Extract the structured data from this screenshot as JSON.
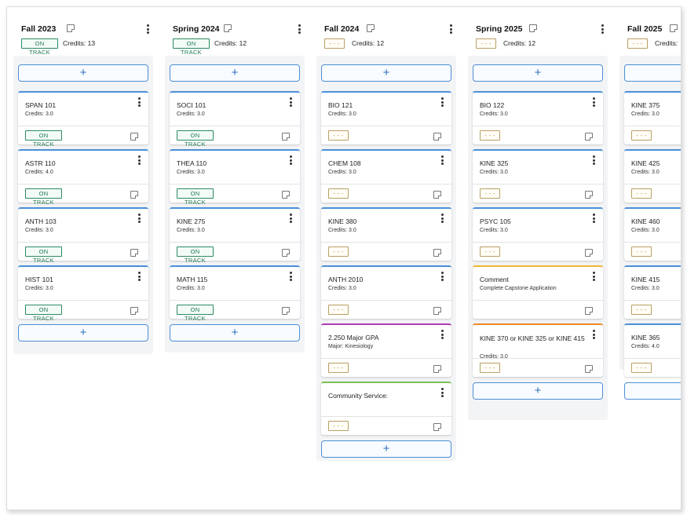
{
  "terms": [
    {
      "title": "Fall 2023",
      "status": "ON TRACK",
      "status_type": "track",
      "credits_label": "Credits:",
      "credits": "13",
      "add_label": "+",
      "cards": [
        {
          "title": "SPAN 101",
          "sub": "Credits: 3.0",
          "status": "ON TRACK",
          "status_type": "track",
          "accent": "#4a90d9"
        },
        {
          "title": "ASTR 110",
          "sub": "Credits: 4.0",
          "status": "ON TRACK",
          "status_type": "track",
          "accent": "#4a90d9"
        },
        {
          "title": "ANTH 103",
          "sub": "Credits: 3.0",
          "status": "ON TRACK",
          "status_type": "track",
          "accent": "#4a90d9"
        },
        {
          "title": "HIST 101",
          "sub": "Credits: 3.0",
          "status": "ON TRACK",
          "status_type": "track",
          "accent": "#4a90d9"
        }
      ]
    },
    {
      "title": "Spring 2024",
      "status": "ON TRACK",
      "status_type": "track",
      "credits_label": "Credits:",
      "credits": "12",
      "add_label": "+",
      "cards": [
        {
          "title": "SOCI 101",
          "sub": "Credits: 3.0",
          "status": "ON TRACK",
          "status_type": "track",
          "accent": "#4a90d9"
        },
        {
          "title": "THEA 110",
          "sub": "Credits: 3.0",
          "status": "ON TRACK",
          "status_type": "track",
          "accent": "#4a90d9"
        },
        {
          "title": "KINE 275",
          "sub": "Credits: 3.0",
          "status": "ON TRACK",
          "status_type": "track",
          "accent": "#4a90d9"
        },
        {
          "title": "MATH 115",
          "sub": "Credits: 3.0",
          "status": "ON TRACK",
          "status_type": "track",
          "accent": "#4a90d9"
        }
      ]
    },
    {
      "title": "Fall 2024",
      "status": "- - -",
      "status_type": "pend",
      "credits_label": "Credits:",
      "credits": "12",
      "add_label": "+",
      "cards": [
        {
          "title": "BIO 121",
          "sub": "Credits: 3.0",
          "status": "- - -",
          "status_type": "pend",
          "accent": "#4a90d9"
        },
        {
          "title": "CHEM 108",
          "sub": "Credits: 3.0",
          "status": "- - -",
          "status_type": "pend",
          "accent": "#4a90d9"
        },
        {
          "title": "KINE 380",
          "sub": "Credits: 3.0",
          "status": "- - -",
          "status_type": "pend",
          "accent": "#4a90d9"
        },
        {
          "title": "ANTH 2010",
          "sub": "Credits: 3.0",
          "status": "- - -",
          "status_type": "pend",
          "accent": "#4a90d9"
        },
        {
          "title": "2.250 Major GPA",
          "sub": "Major: Kinesiology",
          "status": "- - -",
          "status_type": "pend",
          "accent": "#b23ab5"
        },
        {
          "title": "Community Service:",
          "sub": "",
          "status": "- - -",
          "status_type": "pend",
          "accent": "#7cc254"
        }
      ]
    },
    {
      "title": "Spring 2025",
      "status": "- - -",
      "status_type": "pend",
      "credits_label": "Credits:",
      "credits": "12",
      "add_label": "+",
      "cards": [
        {
          "title": "BIO 122",
          "sub": "Credits: 3.0",
          "status": "- - -",
          "status_type": "pend",
          "accent": "#4a90d9"
        },
        {
          "title": "KINE 325",
          "sub": "Credits: 3.0",
          "status": "- - -",
          "status_type": "pend",
          "accent": "#4a90d9"
        },
        {
          "title": "PSYC 105",
          "sub": "Credits: 3.0",
          "status": "- - -",
          "status_type": "pend",
          "accent": "#4a90d9"
        },
        {
          "title": "Comment",
          "sub": "Complete Capstone Application",
          "status": "",
          "status_type": "none",
          "accent": "#f2b431"
        },
        {
          "title": "KINE 370 or KINE 325 or KINE 415",
          "sub": "Credits: 3.0",
          "status": "- - -",
          "status_type": "pend",
          "accent": "#f08a24",
          "wrap": true
        }
      ]
    },
    {
      "title": "Fall 2025",
      "status": "- - -",
      "status_type": "pend",
      "credits_label": "Credits:",
      "credits": "",
      "add_label": "+",
      "cards": [
        {
          "title": "KINE 375",
          "sub": "Credits: 3.0",
          "status": "- - -",
          "status_type": "pend",
          "accent": "#4a90d9"
        },
        {
          "title": "KINE 425",
          "sub": "Credits: 3.0",
          "status": "- - -",
          "status_type": "pend",
          "accent": "#4a90d9"
        },
        {
          "title": "KINE 460",
          "sub": "Credits: 3.0",
          "status": "- - -",
          "status_type": "pend",
          "accent": "#4a90d9"
        },
        {
          "title": "KINE 415",
          "sub": "Credits: 3.0",
          "status": "- - -",
          "status_type": "pend",
          "accent": "#4a90d9"
        },
        {
          "title": "KINE 365",
          "sub": "Credits: 4.0",
          "status": "- - -",
          "status_type": "pend",
          "accent": "#4a90d9"
        }
      ]
    }
  ]
}
